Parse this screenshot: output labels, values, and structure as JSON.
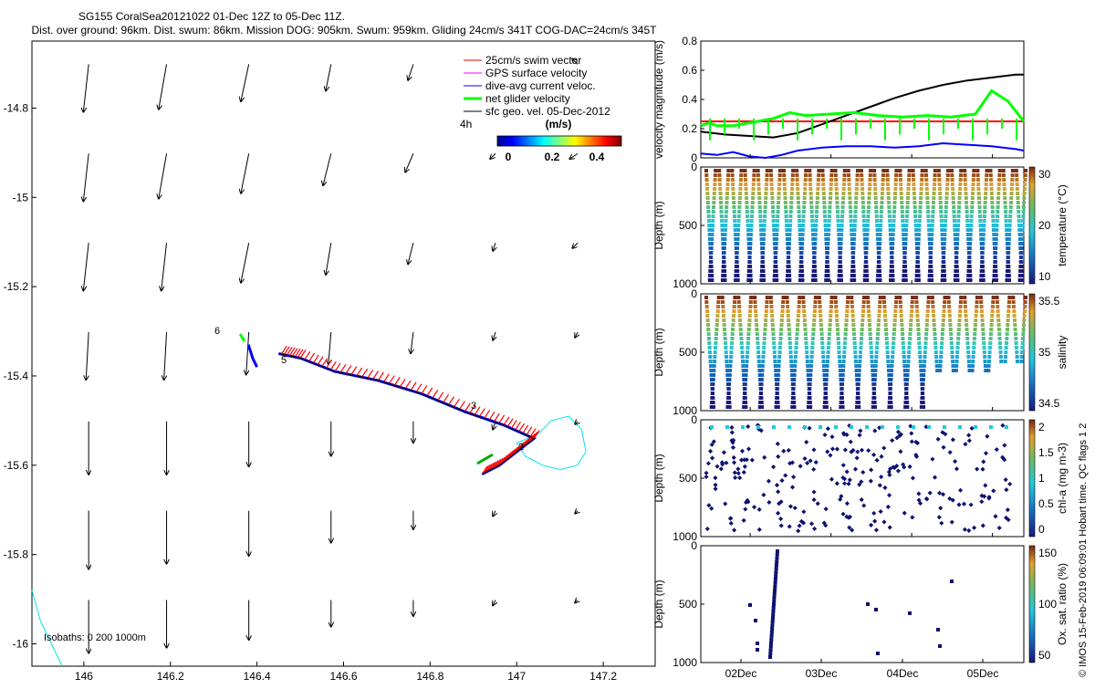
{
  "header": {
    "title": "SG155 CoralSea20121022 01-Dec 12Z to 05-Dec 11Z.",
    "subtitle": "Dist. over ground: 96km. Dist. swum: 86km. Mission DOG: 905km. Swum: 959km. Gliding 24cm/s 341T COG-DAC=24cm/s 345T"
  },
  "map": {
    "legend": [
      {
        "label": "25cm/s swim vector",
        "color": "#ff0000"
      },
      {
        "label": "GPS surface velocity",
        "color": "#ff00ff"
      },
      {
        "label": "dive-avg current veloc.",
        "color": "#0000ff"
      },
      {
        "label": "net glider velocity",
        "color": "#00ff00"
      },
      {
        "label": "sfc geo. vel. 05-Dec-2012",
        "color": "#000000"
      }
    ],
    "time_label": "4h",
    "colorbar_title": "(m/s)",
    "colorbar_ticks": [
      "0",
      "0.2",
      "0.4"
    ],
    "isobaths_label": "Isobaths: 0   200  1000m",
    "track_labels": [
      "6",
      "5",
      "3",
      "2"
    ]
  },
  "footer": {
    "credit": "© IMOS 15-Feb-2019 06:09:01 Hobart time. QC flags 1  2"
  },
  "chart_data": [
    {
      "id": "map",
      "type": "scatter",
      "xlim": [
        145.88,
        147.32
      ],
      "ylim": [
        -16.05,
        -14.65
      ],
      "x_ticks": [
        146,
        146.2,
        146.4,
        146.6,
        146.8,
        147,
        147.2
      ],
      "x_tick_labels": [
        "146",
        "146.2",
        "146.4",
        "146.6",
        "146.8",
        "147",
        "147.2"
      ],
      "y_ticks": [
        -14.8,
        -15,
        -15.2,
        -15.4,
        -15.6,
        -15.8,
        -16
      ],
      "y_tick_labels": [
        "-14.8",
        "-15",
        "-15.2",
        "-15.4",
        "-15.6",
        "-15.8",
        "-16"
      ],
      "geo_vectors": {
        "x": [
          145.99,
          146.17,
          146.36,
          146.55,
          146.74,
          146.93,
          147.12
        ],
        "y": [
          -14.8,
          -15.0,
          -15.2,
          -15.4,
          -15.6,
          -15.8,
          -16.0
        ],
        "rows": [
          [
            [
              -0.02,
              -0.18
            ],
            [
              -0.03,
              -0.17
            ],
            [
              -0.03,
              -0.14
            ],
            [
              -0.02,
              -0.1
            ],
            [
              -0.02,
              -0.06
            ],
            [
              0,
              0
            ],
            [
              -0.02,
              0.02
            ]
          ],
          [
            [
              -0.02,
              -0.18
            ],
            [
              -0.03,
              -0.17
            ],
            [
              -0.03,
              -0.15
            ],
            [
              -0.03,
              -0.12
            ],
            [
              -0.03,
              -0.07
            ],
            [
              -0.02,
              -0.02
            ],
            [
              -0.03,
              -0.02
            ]
          ],
          [
            [
              -0.02,
              -0.18
            ],
            [
              -0.02,
              -0.18
            ],
            [
              -0.03,
              -0.15
            ],
            [
              -0.02,
              -0.12
            ],
            [
              -0.02,
              -0.08
            ],
            [
              -0.01,
              -0.03
            ],
            [
              -0.02,
              -0.02
            ]
          ],
          [
            [
              -0.01,
              -0.18
            ],
            [
              -0.01,
              -0.18
            ],
            [
              -0.01,
              -0.16
            ],
            [
              -0.01,
              -0.12
            ],
            [
              -0.01,
              -0.08
            ],
            [
              -0.01,
              -0.03
            ],
            [
              -0.01,
              -0.02
            ]
          ],
          [
            [
              0,
              -0.2
            ],
            [
              0,
              -0.2
            ],
            [
              0,
              -0.17
            ],
            [
              0,
              -0.13
            ],
            [
              0,
              -0.08
            ],
            [
              -0.01,
              -0.03
            ],
            [
              -0.01,
              -0.01
            ]
          ],
          [
            [
              0.0,
              -0.22
            ],
            [
              0.0,
              -0.2
            ],
            [
              0.0,
              -0.17
            ],
            [
              0.0,
              -0.12
            ],
            [
              0.0,
              -0.07
            ],
            [
              -0.01,
              -0.02
            ],
            [
              -0.01,
              -0.01
            ]
          ],
          [
            [
              0,
              -0.2
            ],
            [
              0,
              -0.18
            ],
            [
              0,
              -0.15
            ],
            [
              0,
              -0.1
            ],
            [
              0,
              -0.06
            ],
            [
              -0.01,
              -0.02
            ],
            [
              -0.01,
              -0.01
            ]
          ]
        ]
      },
      "track_x": [
        146.92,
        146.96,
        147.0,
        147.04,
        146.97,
        146.88,
        146.78,
        146.68,
        146.58,
        146.5,
        146.45
      ],
      "track_y": [
        -15.62,
        -15.6,
        -15.57,
        -15.54,
        -15.51,
        -15.48,
        -15.44,
        -15.41,
        -15.39,
        -15.36,
        -15.35
      ],
      "track2_x": [
        146.38,
        146.39,
        146.4
      ],
      "track2_y": [
        -15.33,
        -15.36,
        -15.38
      ],
      "cyan_loop_x": [
        147.05,
        147.08,
        147.12,
        147.15,
        147.16,
        147.14,
        147.1,
        147.06,
        147.02,
        147.0,
        147.05
      ],
      "cyan_loop_y": [
        -15.53,
        -15.5,
        -15.49,
        -15.52,
        -15.57,
        -15.6,
        -15.61,
        -15.6,
        -15.58,
        -15.55,
        -15.53
      ],
      "coast_x": [
        145.88,
        145.9,
        145.95
      ],
      "coast_y": [
        -15.88,
        -15.95,
        -16.05
      ]
    },
    {
      "id": "velocity",
      "type": "line",
      "ylabel": "velocity magnitude (m/s)",
      "xlim": [
        0,
        4
      ],
      "ylim": [
        0,
        0.8
      ],
      "y_ticks": [
        0,
        0.2,
        0.4,
        0.6,
        0.8
      ],
      "y_tick_labels": [
        "0",
        "0.2",
        "0.4",
        "0.6",
        "0.8"
      ],
      "series": [
        {
          "color": "#ff0000",
          "x": [
            0,
            4
          ],
          "y": [
            0.25,
            0.25
          ]
        },
        {
          "color": "#000000",
          "x": [
            0,
            0.3,
            0.6,
            0.9,
            1.2,
            1.5,
            1.8,
            2.1,
            2.4,
            2.7,
            3.0,
            3.3,
            3.6,
            3.9,
            4.0
          ],
          "y": [
            0.18,
            0.16,
            0.15,
            0.14,
            0.17,
            0.23,
            0.29,
            0.35,
            0.41,
            0.46,
            0.5,
            0.53,
            0.55,
            0.57,
            0.57
          ]
        },
        {
          "color": "#0000ff",
          "x": [
            0,
            0.2,
            0.4,
            0.6,
            0.8,
            1.0,
            1.2,
            1.5,
            1.8,
            2.1,
            2.4,
            2.7,
            3.0,
            3.3,
            3.6,
            3.9,
            4.0
          ],
          "y": [
            0.03,
            0.02,
            0.04,
            0.01,
            0.0,
            0.02,
            0.05,
            0.07,
            0.08,
            0.08,
            0.07,
            0.08,
            0.1,
            0.09,
            0.08,
            0.06,
            0.05
          ]
        },
        {
          "color": "#00ff00",
          "x": [
            0,
            0.1,
            0.2,
            0.4,
            0.6,
            0.9,
            1.1,
            1.3,
            1.6,
            1.9,
            2.2,
            2.5,
            2.8,
            3.1,
            3.4,
            3.6,
            3.8,
            4.0
          ],
          "y": [
            0.22,
            0.24,
            0.22,
            0.22,
            0.24,
            0.27,
            0.31,
            0.29,
            0.3,
            0.31,
            0.29,
            0.28,
            0.29,
            0.28,
            0.3,
            0.46,
            0.39,
            0.25
          ]
        }
      ]
    },
    {
      "id": "temperature",
      "type": "scatter",
      "ylabel": "Depth (m)",
      "cblabel": "temperature (°C)",
      "cb_ticks": [
        "30",
        "20",
        "10"
      ],
      "ylim": [
        1000,
        0
      ],
      "y_tick_labels": [
        "0",
        "500",
        "1000"
      ],
      "profiles": 25,
      "max_depth": 1000
    },
    {
      "id": "salinity",
      "type": "scatter",
      "ylabel": "Depth (m)",
      "cblabel": "salinity",
      "cb_ticks": [
        "35.5",
        "35",
        "34.5"
      ],
      "ylim": [
        1000,
        0
      ],
      "y_tick_labels": [
        "0",
        "500",
        "1000"
      ],
      "profiles": 20,
      "max_depth": 1000
    },
    {
      "id": "chla",
      "type": "scatter",
      "ylabel": "Depth (m)",
      "cblabel": "chl-a (mg m-3)",
      "cb_ticks": [
        "2",
        "1.5",
        "1",
        "0.5",
        "0"
      ],
      "ylim": [
        1000,
        0
      ],
      "y_tick_labels": [
        "0",
        "500",
        "1000"
      ]
    },
    {
      "id": "oxygen",
      "type": "scatter",
      "ylabel": "Depth (m)",
      "cblabel": "Ox. sat. ratio (%)",
      "cb_ticks": [
        "150",
        "100",
        "50"
      ],
      "ylim": [
        1000,
        0
      ],
      "y_tick_labels": [
        "0",
        "500",
        "1000"
      ],
      "x_tick_labels": [
        "02Dec",
        "03Dec",
        "04Dec",
        "05Dec"
      ]
    }
  ]
}
